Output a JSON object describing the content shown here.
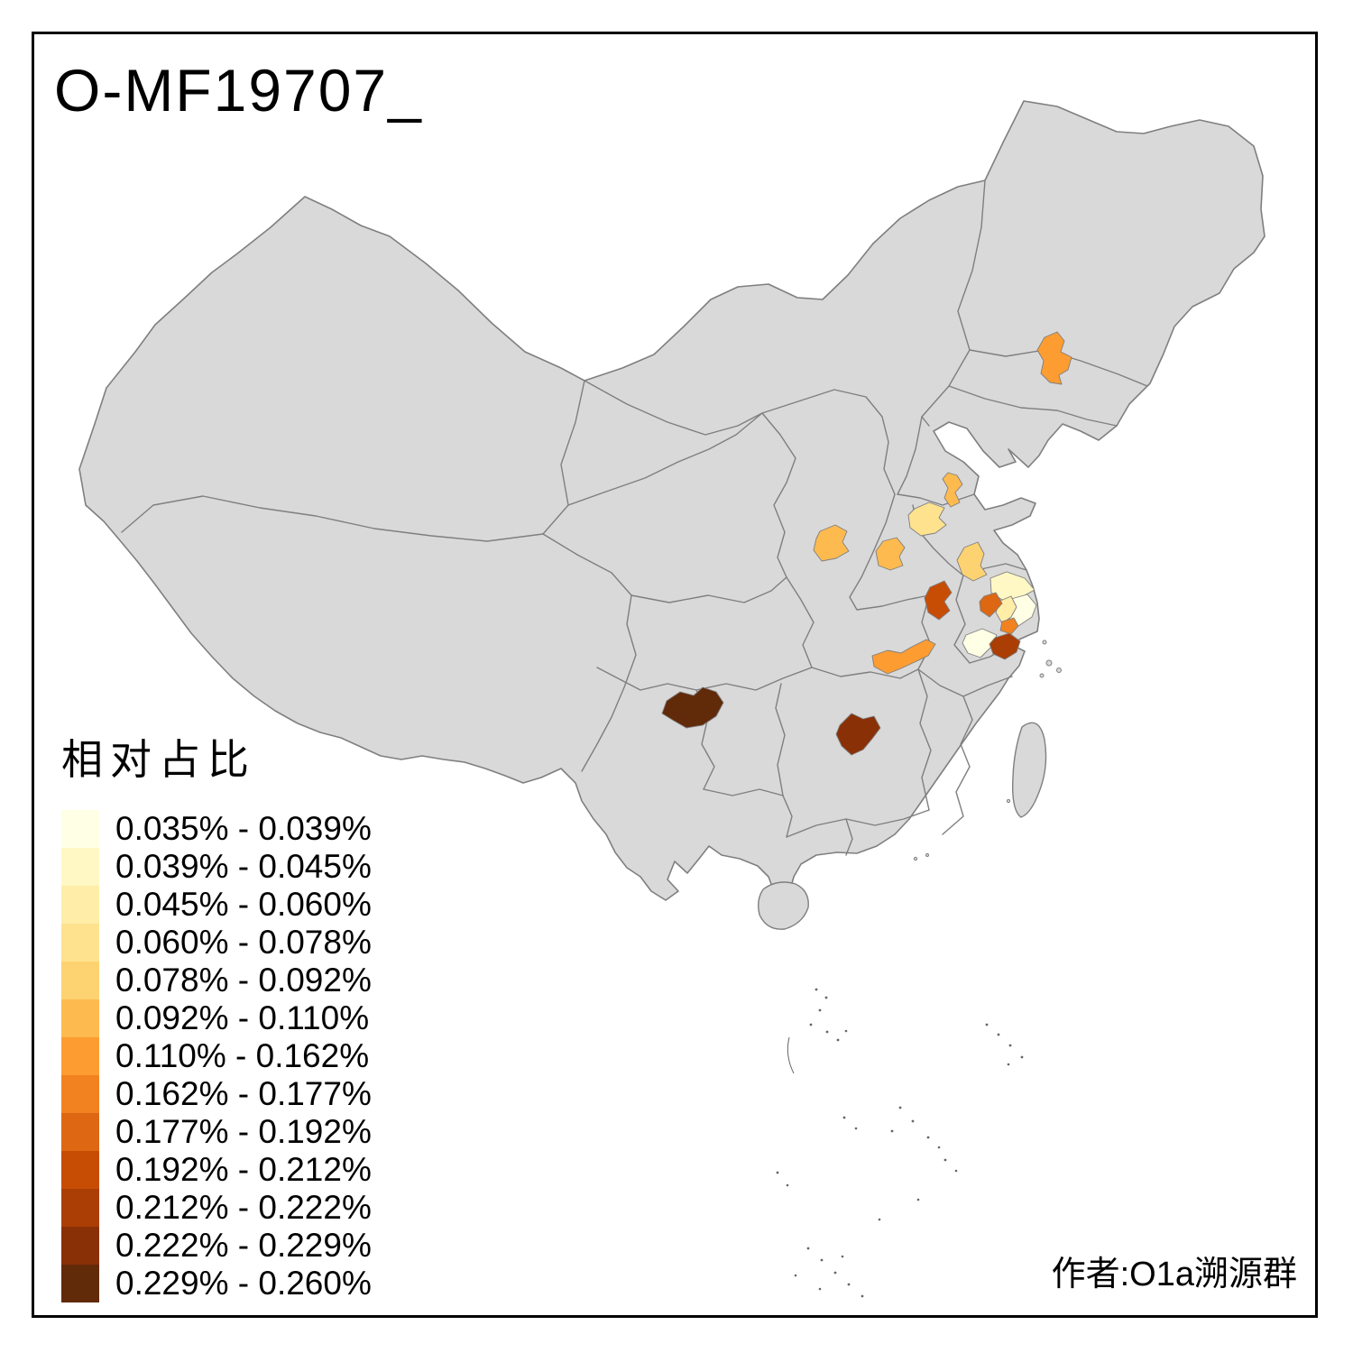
{
  "title": "O-MF19707_",
  "credit": "作者:O1a溯源群",
  "map_style": {
    "land_color": "#D9D9D9",
    "border_color": "#7F7F7F",
    "background": "#FFFFFF",
    "frame_color": "#000000",
    "island_mark_color": "#666666"
  },
  "chart_data": {
    "type": "choropleth",
    "legend_title": "相对占比",
    "legend_position": "bottom-left",
    "bins": [
      {
        "label": "0.035% - 0.039%",
        "color": "#FFFFE5"
      },
      {
        "label": "0.039% - 0.045%",
        "color": "#FFF8C4"
      },
      {
        "label": "0.045% - 0.060%",
        "color": "#FFEDA8"
      },
      {
        "label": "0.060% - 0.078%",
        "color": "#FEE28E"
      },
      {
        "label": "0.078% - 0.092%",
        "color": "#FDD271"
      },
      {
        "label": "0.092% - 0.110%",
        "color": "#FDBA4F"
      },
      {
        "label": "0.110% - 0.162%",
        "color": "#FD9C31"
      },
      {
        "label": "0.162% - 0.177%",
        "color": "#F1821F"
      },
      {
        "label": "0.177% - 0.192%",
        "color": "#DD6713"
      },
      {
        "label": "0.192% - 0.212%",
        "color": "#C74D05"
      },
      {
        "label": "0.212% - 0.222%",
        "color": "#AA3E04"
      },
      {
        "label": "0.222% - 0.229%",
        "color": "#8A3007"
      },
      {
        "label": "0.229% - 0.260%",
        "color": "#612A09"
      }
    ],
    "regions": [
      {
        "id": "jilin",
        "bin_label": "0.110% - 0.162%",
        "color": "#FD9C31"
      },
      {
        "id": "shandong-north",
        "bin_label": "0.092% - 0.110%",
        "color": "#FDBA4F"
      },
      {
        "id": "shandong-south",
        "bin_label": "0.060% - 0.078%",
        "color": "#FEE28E"
      },
      {
        "id": "henan-west",
        "bin_label": "0.092% - 0.110%",
        "color": "#FDBA4F"
      },
      {
        "id": "henan-center",
        "bin_label": "0.092% - 0.110%",
        "color": "#FDBA4F"
      },
      {
        "id": "jiangsu-north",
        "bin_label": "0.078% - 0.092%",
        "color": "#FDD271"
      },
      {
        "id": "anhui-north",
        "bin_label": "0.192% - 0.212%",
        "color": "#C74D05"
      },
      {
        "id": "jiangsu-coast",
        "bin_label": "0.039% - 0.045%",
        "color": "#FFF8C4"
      },
      {
        "id": "jiangsu-center",
        "bin_label": "0.035% - 0.039%",
        "color": "#FFFFE5"
      },
      {
        "id": "yangzhou-area",
        "bin_label": "0.177% - 0.192%",
        "color": "#DD6713"
      },
      {
        "id": "taizhou-area",
        "bin_label": "0.045% - 0.060%",
        "color": "#FFEDA8"
      },
      {
        "id": "nantong-area",
        "bin_label": "0.162% - 0.177%",
        "color": "#F1821F"
      },
      {
        "id": "south-jiangsu",
        "bin_label": "0.212% - 0.222%",
        "color": "#AA3E04"
      },
      {
        "id": "anhui-southeast",
        "bin_label": "0.035% - 0.039%",
        "color": "#FFFFE5"
      },
      {
        "id": "anqing-band",
        "bin_label": "0.110% - 0.162%",
        "color": "#FD9C31"
      },
      {
        "id": "guizhou-area",
        "bin_label": "0.229% - 0.260%",
        "color": "#612A09"
      },
      {
        "id": "hunan-area",
        "bin_label": "0.222% - 0.229%",
        "color": "#8A3007"
      }
    ]
  }
}
